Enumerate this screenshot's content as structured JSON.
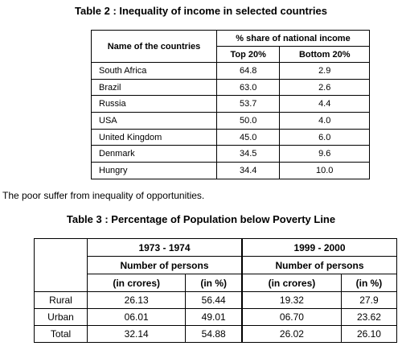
{
  "table2": {
    "title": "Table 2 : Inequality of income in selected countries",
    "col_name": "Name of the countries",
    "col_group": "% share of national income",
    "col_top": "Top 20%",
    "col_bottom": "Bottom 20%",
    "rows": [
      {
        "country": "South Africa",
        "top": "64.8",
        "bottom": "2.9"
      },
      {
        "country": "Brazil",
        "top": "63.0",
        "bottom": "2.6"
      },
      {
        "country": "Russia",
        "top": "53.7",
        "bottom": "4.4"
      },
      {
        "country": "USA",
        "top": "50.0",
        "bottom": "4.0"
      },
      {
        "country": "United Kingdom",
        "top": "45.0",
        "bottom": "6.0"
      },
      {
        "country": "Denmark",
        "top": "34.5",
        "bottom": "9.6"
      },
      {
        "country": "Hungry",
        "top": "34.4",
        "bottom": "10.0"
      }
    ]
  },
  "sentence": "The poor suffer from inequality of opportunities.",
  "table3": {
    "title": "Table 3 : Percentage of Population below Poverty Line",
    "period1": "1973 - 1974",
    "period2": "1999 - 2000",
    "num_persons": "Number of persons",
    "in_crores": "(in crores)",
    "in_pct": "(in %)",
    "rows": [
      {
        "label": "Rural",
        "c1": "26.13",
        "p1": "56.44",
        "c2": "19.32",
        "p2": "27.9"
      },
      {
        "label": "Urban",
        "c1": "06.01",
        "p1": "49.01",
        "c2": "06.70",
        "p2": "23.62"
      },
      {
        "label": "Total",
        "c1": "32.14",
        "p1": "54.88",
        "c2": "26.02",
        "p2": "26.10"
      }
    ]
  }
}
